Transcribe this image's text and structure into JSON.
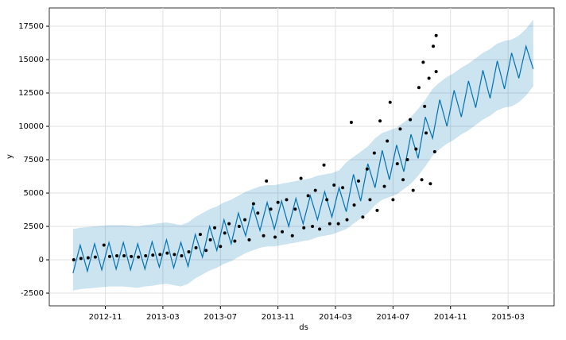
{
  "chart_data": {
    "type": "forecast",
    "xlabel": "ds",
    "ylabel": "y",
    "grid": true,
    "xlim": [
      6.1,
      41.2
    ],
    "ylim": [
      -3450,
      18870
    ],
    "xticks": [
      {
        "value": 10,
        "label": "2012-11"
      },
      {
        "value": 14,
        "label": "2013-03"
      },
      {
        "value": 18,
        "label": "2013-07"
      },
      {
        "value": 22,
        "label": "2013-11"
      },
      {
        "value": 26,
        "label": "2014-03"
      },
      {
        "value": 30,
        "label": "2014-07"
      },
      {
        "value": 34,
        "label": "2014-11"
      },
      {
        "value": 38,
        "label": "2015-03"
      }
    ],
    "yticks": [
      -2500,
      0,
      2500,
      5000,
      7500,
      10000,
      12500,
      15000,
      17500
    ],
    "x": [
      7.75,
      8.25,
      8.75,
      9.25,
      9.75,
      10.25,
      10.75,
      11.25,
      11.75,
      12.25,
      12.75,
      13.25,
      13.75,
      14.25,
      14.75,
      15.25,
      15.75,
      16.25,
      16.75,
      17.25,
      17.75,
      18.25,
      18.75,
      19.25,
      19.75,
      20.25,
      20.75,
      21.25,
      21.75,
      22.25,
      22.75,
      23.25,
      23.75,
      24.25,
      24.75,
      25.25,
      25.75,
      26.25,
      26.75,
      27.25,
      27.75,
      28.25,
      28.75,
      29.25,
      29.75,
      30.25,
      30.75,
      31.25,
      31.75,
      32.25,
      32.75,
      33.25,
      33.75,
      34.25,
      34.75,
      35.25,
      35.75,
      36.25,
      36.75,
      37.25,
      37.75,
      38.25,
      38.75,
      39.25,
      39.75
    ],
    "line": {
      "color": "#0072B2",
      "values": [
        -1000,
        1100,
        -850,
        1200,
        -750,
        1300,
        -700,
        1300,
        -750,
        1200,
        -700,
        1350,
        -550,
        1500,
        -600,
        1300,
        -500,
        1900,
        200,
        2500,
        700,
        3000,
        1200,
        3500,
        1800,
        4000,
        2200,
        4300,
        2300,
        4400,
        2500,
        4600,
        2700,
        4800,
        3000,
        5100,
        3200,
        5400,
        3600,
        6400,
        4400,
        7200,
        5400,
        8200,
        6000,
        8600,
        6600,
        9400,
        7600,
        10700,
        9100,
        12000,
        10000,
        12700,
        10700,
        13400,
        11400,
        14200,
        12100,
        14900,
        12800,
        15500,
        13600,
        16000,
        14300
      ]
    },
    "band": {
      "color": "#0072B2",
      "opacity": 0.2,
      "lower": [
        -2300,
        -2200,
        -2150,
        -2100,
        -2050,
        -2000,
        -2000,
        -2000,
        -2050,
        -2100,
        -2000,
        -1950,
        -1850,
        -1800,
        -1900,
        -2000,
        -1800,
        -1400,
        -1100,
        -800,
        -600,
        -300,
        -100,
        200,
        500,
        700,
        900,
        1000,
        1000,
        1100,
        1200,
        1300,
        1400,
        1500,
        1700,
        1800,
        1900,
        2100,
        2300,
        2700,
        3100,
        3500,
        4100,
        4500,
        4700,
        4900,
        5300,
        5700,
        6300,
        7000,
        7800,
        8300,
        8700,
        9000,
        9400,
        9700,
        10100,
        10500,
        10800,
        11200,
        11400,
        11500,
        11800,
        12300,
        13000
      ],
      "upper": [
        2300,
        2400,
        2450,
        2500,
        2550,
        2600,
        2600,
        2600,
        2550,
        2500,
        2600,
        2650,
        2750,
        2800,
        2700,
        2600,
        2800,
        3200,
        3500,
        3800,
        4000,
        4300,
        4500,
        4800,
        5100,
        5300,
        5500,
        5600,
        5600,
        5700,
        5800,
        5900,
        6000,
        6100,
        6300,
        6400,
        6500,
        6700,
        7300,
        7700,
        8100,
        8500,
        9100,
        9500,
        9700,
        9900,
        10300,
        10700,
        11300,
        12000,
        12800,
        13300,
        13700,
        14000,
        14400,
        14700,
        15100,
        15500,
        15800,
        16200,
        16400,
        16500,
        16800,
        17300,
        18000
      ]
    },
    "points": {
      "color": "#000000",
      "x": [
        7.8,
        8.3,
        8.8,
        9.3,
        9.9,
        10.3,
        10.8,
        11.3,
        11.8,
        12.3,
        12.8,
        13.3,
        13.8,
        14.3,
        14.8,
        15.3,
        15.8,
        16.3,
        16.6,
        17.0,
        17.3,
        17.6,
        18.0,
        18.3,
        18.6,
        19.0,
        19.3,
        19.7,
        20.0,
        20.3,
        20.6,
        21.0,
        21.2,
        21.5,
        21.8,
        22.0,
        22.3,
        22.6,
        23.0,
        23.2,
        23.6,
        23.8,
        24.1,
        24.4,
        24.6,
        24.9,
        25.2,
        25.4,
        25.6,
        25.9,
        26.2,
        26.5,
        26.8,
        27.1,
        27.3,
        27.6,
        27.9,
        28.2,
        28.4,
        28.7,
        28.9,
        29.1,
        29.4,
        29.6,
        29.8,
        30.0,
        30.3,
        30.5,
        30.7,
        31.0,
        31.2,
        31.4,
        31.6,
        31.8,
        32.0,
        32.1,
        32.3,
        32.5,
        32.6,
        32.8,
        33.0,
        32.9,
        33.0,
        32.2
      ],
      "y": [
        0,
        100,
        150,
        200,
        1100,
        250,
        300,
        300,
        250,
        200,
        300,
        350,
        400,
        500,
        400,
        300,
        600,
        900,
        1900,
        700,
        1500,
        2400,
        1000,
        2000,
        2700,
        1400,
        2500,
        3000,
        1500,
        4200,
        3500,
        1800,
        5900,
        3800,
        1700,
        4300,
        2100,
        4500,
        1800,
        3800,
        6100,
        2400,
        4800,
        2500,
        5200,
        2300,
        7100,
        4500,
        2700,
        5600,
        2700,
        5400,
        3000,
        10300,
        4100,
        5900,
        3200,
        6800,
        4500,
        8000,
        3700,
        10400,
        5500,
        8900,
        11800,
        4500,
        7200,
        9800,
        6000,
        7500,
        10500,
        5200,
        8300,
        12900,
        6000,
        14800,
        9500,
        13600,
        5700,
        16000,
        16800,
        8100,
        14100,
        11500
      ]
    }
  }
}
